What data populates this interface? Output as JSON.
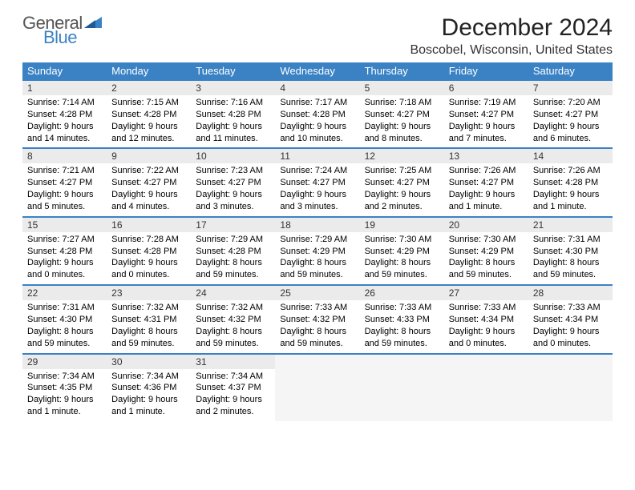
{
  "logo": {
    "text1": "General",
    "text2": "Blue"
  },
  "title": "December 2024",
  "location": "Boscobel, Wisconsin, United States",
  "colors": {
    "header_bg": "#3b82c4",
    "header_text": "#ffffff",
    "daynum_bg": "#ebebeb",
    "row_border": "#3b82c4",
    "logo_blue": "#3b82c4",
    "logo_gray": "#555555"
  },
  "columns": [
    "Sunday",
    "Monday",
    "Tuesday",
    "Wednesday",
    "Thursday",
    "Friday",
    "Saturday"
  ],
  "weeks": [
    [
      {
        "n": "1",
        "sr": "Sunrise: 7:14 AM",
        "ss": "Sunset: 4:28 PM",
        "dl": "Daylight: 9 hours and 14 minutes."
      },
      {
        "n": "2",
        "sr": "Sunrise: 7:15 AM",
        "ss": "Sunset: 4:28 PM",
        "dl": "Daylight: 9 hours and 12 minutes."
      },
      {
        "n": "3",
        "sr": "Sunrise: 7:16 AM",
        "ss": "Sunset: 4:28 PM",
        "dl": "Daylight: 9 hours and 11 minutes."
      },
      {
        "n": "4",
        "sr": "Sunrise: 7:17 AM",
        "ss": "Sunset: 4:28 PM",
        "dl": "Daylight: 9 hours and 10 minutes."
      },
      {
        "n": "5",
        "sr": "Sunrise: 7:18 AM",
        "ss": "Sunset: 4:27 PM",
        "dl": "Daylight: 9 hours and 8 minutes."
      },
      {
        "n": "6",
        "sr": "Sunrise: 7:19 AM",
        "ss": "Sunset: 4:27 PM",
        "dl": "Daylight: 9 hours and 7 minutes."
      },
      {
        "n": "7",
        "sr": "Sunrise: 7:20 AM",
        "ss": "Sunset: 4:27 PM",
        "dl": "Daylight: 9 hours and 6 minutes."
      }
    ],
    [
      {
        "n": "8",
        "sr": "Sunrise: 7:21 AM",
        "ss": "Sunset: 4:27 PM",
        "dl": "Daylight: 9 hours and 5 minutes."
      },
      {
        "n": "9",
        "sr": "Sunrise: 7:22 AM",
        "ss": "Sunset: 4:27 PM",
        "dl": "Daylight: 9 hours and 4 minutes."
      },
      {
        "n": "10",
        "sr": "Sunrise: 7:23 AM",
        "ss": "Sunset: 4:27 PM",
        "dl": "Daylight: 9 hours and 3 minutes."
      },
      {
        "n": "11",
        "sr": "Sunrise: 7:24 AM",
        "ss": "Sunset: 4:27 PM",
        "dl": "Daylight: 9 hours and 3 minutes."
      },
      {
        "n": "12",
        "sr": "Sunrise: 7:25 AM",
        "ss": "Sunset: 4:27 PM",
        "dl": "Daylight: 9 hours and 2 minutes."
      },
      {
        "n": "13",
        "sr": "Sunrise: 7:26 AM",
        "ss": "Sunset: 4:27 PM",
        "dl": "Daylight: 9 hours and 1 minute."
      },
      {
        "n": "14",
        "sr": "Sunrise: 7:26 AM",
        "ss": "Sunset: 4:28 PM",
        "dl": "Daylight: 9 hours and 1 minute."
      }
    ],
    [
      {
        "n": "15",
        "sr": "Sunrise: 7:27 AM",
        "ss": "Sunset: 4:28 PM",
        "dl": "Daylight: 9 hours and 0 minutes."
      },
      {
        "n": "16",
        "sr": "Sunrise: 7:28 AM",
        "ss": "Sunset: 4:28 PM",
        "dl": "Daylight: 9 hours and 0 minutes."
      },
      {
        "n": "17",
        "sr": "Sunrise: 7:29 AM",
        "ss": "Sunset: 4:28 PM",
        "dl": "Daylight: 8 hours and 59 minutes."
      },
      {
        "n": "18",
        "sr": "Sunrise: 7:29 AM",
        "ss": "Sunset: 4:29 PM",
        "dl": "Daylight: 8 hours and 59 minutes."
      },
      {
        "n": "19",
        "sr": "Sunrise: 7:30 AM",
        "ss": "Sunset: 4:29 PM",
        "dl": "Daylight: 8 hours and 59 minutes."
      },
      {
        "n": "20",
        "sr": "Sunrise: 7:30 AM",
        "ss": "Sunset: 4:29 PM",
        "dl": "Daylight: 8 hours and 59 minutes."
      },
      {
        "n": "21",
        "sr": "Sunrise: 7:31 AM",
        "ss": "Sunset: 4:30 PM",
        "dl": "Daylight: 8 hours and 59 minutes."
      }
    ],
    [
      {
        "n": "22",
        "sr": "Sunrise: 7:31 AM",
        "ss": "Sunset: 4:30 PM",
        "dl": "Daylight: 8 hours and 59 minutes."
      },
      {
        "n": "23",
        "sr": "Sunrise: 7:32 AM",
        "ss": "Sunset: 4:31 PM",
        "dl": "Daylight: 8 hours and 59 minutes."
      },
      {
        "n": "24",
        "sr": "Sunrise: 7:32 AM",
        "ss": "Sunset: 4:32 PM",
        "dl": "Daylight: 8 hours and 59 minutes."
      },
      {
        "n": "25",
        "sr": "Sunrise: 7:33 AM",
        "ss": "Sunset: 4:32 PM",
        "dl": "Daylight: 8 hours and 59 minutes."
      },
      {
        "n": "26",
        "sr": "Sunrise: 7:33 AM",
        "ss": "Sunset: 4:33 PM",
        "dl": "Daylight: 8 hours and 59 minutes."
      },
      {
        "n": "27",
        "sr": "Sunrise: 7:33 AM",
        "ss": "Sunset: 4:34 PM",
        "dl": "Daylight: 9 hours and 0 minutes."
      },
      {
        "n": "28",
        "sr": "Sunrise: 7:33 AM",
        "ss": "Sunset: 4:34 PM",
        "dl": "Daylight: 9 hours and 0 minutes."
      }
    ],
    [
      {
        "n": "29",
        "sr": "Sunrise: 7:34 AM",
        "ss": "Sunset: 4:35 PM",
        "dl": "Daylight: 9 hours and 1 minute."
      },
      {
        "n": "30",
        "sr": "Sunrise: 7:34 AM",
        "ss": "Sunset: 4:36 PM",
        "dl": "Daylight: 9 hours and 1 minute."
      },
      {
        "n": "31",
        "sr": "Sunrise: 7:34 AM",
        "ss": "Sunset: 4:37 PM",
        "dl": "Daylight: 9 hours and 2 minutes."
      },
      null,
      null,
      null,
      null
    ]
  ]
}
